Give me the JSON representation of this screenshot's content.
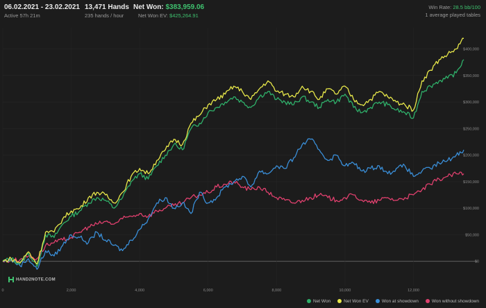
{
  "header": {
    "date_range": "06.02.2021 - 23.02.2021",
    "active": "Active 57h 21m",
    "hands": "13,471 Hands",
    "hands_rate": "235 hands / hour",
    "net_won_label": "Net Won:",
    "net_won_value": "$383,959.06",
    "ev_label": "Net Won  EV:",
    "ev_value": "$425,264.91",
    "win_rate_label": "Win Rate:",
    "win_rate_value": "28.5 bb/100",
    "avg_tables": "1 average played tables"
  },
  "logo_text": "HAND2NOTE.COM",
  "legend": [
    {
      "name": "Net Won",
      "color": "#2fb06a"
    },
    {
      "name": "Net Won  EV",
      "color": "#e8e84a"
    },
    {
      "name": "Won at showdown",
      "color": "#3a8fd9"
    },
    {
      "name": "Won without showdown",
      "color": "#e0406e"
    }
  ],
  "chart_data": {
    "type": "line",
    "xlim": [
      0,
      13471
    ],
    "ylim": [
      -20000,
      440000
    ],
    "x_ticks": [
      "0",
      "2,000",
      "4,000",
      "6,000",
      "8,000",
      "10,000",
      "12,000"
    ],
    "x_tick_values": [
      0,
      2000,
      4000,
      6000,
      8000,
      10000,
      12000
    ],
    "y_ticks": [
      "$0",
      "$50,000",
      "$100,000",
      "$150,000",
      "$200,000",
      "$250,000",
      "$300,000",
      "$350,000",
      "$400,000"
    ],
    "y_tick_values": [
      0,
      50000,
      100000,
      150000,
      200000,
      250000,
      300000,
      350000,
      400000
    ],
    "series": [
      {
        "name": "Net Won",
        "color": "#2fb06a",
        "x": [
          0,
          250,
          500,
          750,
          1000,
          1250,
          1500,
          1750,
          2000,
          2250,
          2500,
          2750,
          3000,
          3250,
          3500,
          3750,
          4000,
          4250,
          4500,
          4750,
          5000,
          5250,
          5500,
          5750,
          6000,
          6250,
          6500,
          6750,
          7000,
          7250,
          7500,
          7750,
          8000,
          8250,
          8500,
          8750,
          9000,
          9250,
          9500,
          9750,
          10000,
          10250,
          10500,
          10750,
          11000,
          11250,
          11500,
          11750,
          12000,
          12250,
          12500,
          12750,
          13000,
          13250,
          13471
        ],
        "values": [
          0,
          5000,
          -5000,
          15000,
          -10000,
          50000,
          45000,
          70000,
          85000,
          95000,
          110000,
          120000,
          115000,
          100000,
          120000,
          150000,
          165000,
          155000,
          180000,
          200000,
          220000,
          210000,
          250000,
          260000,
          280000,
          290000,
          300000,
          310000,
          300000,
          290000,
          310000,
          320000,
          305000,
          300000,
          295000,
          310000,
          300000,
          290000,
          305000,
          300000,
          315000,
          290000,
          280000,
          290000,
          300000,
          295000,
          285000,
          280000,
          270000,
          320000,
          330000,
          340000,
          345000,
          355000,
          380000
        ]
      },
      {
        "name": "Net Won  EV",
        "color": "#e8e84a",
        "x": [
          0,
          250,
          500,
          750,
          1000,
          1250,
          1500,
          1750,
          2000,
          2250,
          2500,
          2750,
          3000,
          3250,
          3500,
          3750,
          4000,
          4250,
          4500,
          4750,
          5000,
          5250,
          5500,
          5750,
          6000,
          6250,
          6500,
          6750,
          7000,
          7250,
          7500,
          7750,
          8000,
          8250,
          8500,
          8750,
          9000,
          9250,
          9500,
          9750,
          10000,
          10250,
          10500,
          10750,
          11000,
          11250,
          11500,
          11750,
          12000,
          12250,
          12500,
          12750,
          13000,
          13250,
          13471
        ],
        "values": [
          0,
          5000,
          -3000,
          18000,
          -5000,
          55000,
          55000,
          80000,
          95000,
          100000,
          120000,
          130000,
          125000,
          110000,
          130000,
          160000,
          175000,
          165000,
          190000,
          210000,
          230000,
          220000,
          260000,
          275000,
          295000,
          305000,
          315000,
          330000,
          320000,
          305000,
          325000,
          340000,
          320000,
          315000,
          310000,
          330000,
          320000,
          305000,
          325000,
          315000,
          330000,
          305000,
          295000,
          305000,
          320000,
          310000,
          300000,
          295000,
          285000,
          340000,
          360000,
          380000,
          390000,
          400000,
          420000
        ]
      },
      {
        "name": "Won at showdown",
        "color": "#3a8fd9",
        "x": [
          0,
          250,
          500,
          750,
          1000,
          1250,
          1500,
          1750,
          2000,
          2250,
          2500,
          2750,
          3000,
          3250,
          3500,
          3750,
          4000,
          4250,
          4500,
          4750,
          5000,
          5250,
          5500,
          5750,
          6000,
          6250,
          6500,
          6750,
          7000,
          7250,
          7500,
          7750,
          8000,
          8250,
          8500,
          8750,
          9000,
          9250,
          9500,
          9750,
          10000,
          10250,
          10500,
          10750,
          11000,
          11250,
          11500,
          11750,
          12000,
          12250,
          12500,
          12750,
          13000,
          13250,
          13471
        ],
        "values": [
          0,
          3000,
          -8000,
          5000,
          -15000,
          20000,
          10000,
          30000,
          50000,
          45000,
          35000,
          55000,
          40000,
          30000,
          20000,
          40000,
          60000,
          80000,
          110000,
          120000,
          100000,
          110000,
          90000,
          130000,
          110000,
          120000,
          140000,
          150000,
          160000,
          140000,
          170000,
          165000,
          180000,
          175000,
          195000,
          220000,
          230000,
          210000,
          190000,
          200000,
          180000,
          185000,
          170000,
          175000,
          180000,
          165000,
          175000,
          180000,
          160000,
          170000,
          175000,
          185000,
          190000,
          200000,
          210000
        ]
      },
      {
        "name": "Won without showdown",
        "color": "#e0406e",
        "x": [
          0,
          250,
          500,
          750,
          1000,
          1250,
          1500,
          1750,
          2000,
          2250,
          2500,
          2750,
          3000,
          3250,
          3500,
          3750,
          4000,
          4250,
          4500,
          4750,
          5000,
          5250,
          5500,
          5750,
          6000,
          6250,
          6500,
          6750,
          7000,
          7250,
          7500,
          7750,
          8000,
          8250,
          8500,
          8750,
          9000,
          9250,
          9500,
          9750,
          10000,
          10250,
          10500,
          10750,
          11000,
          11250,
          11500,
          11750,
          12000,
          12250,
          12500,
          12750,
          13000,
          13250,
          13471
        ],
        "values": [
          0,
          2000,
          3000,
          10000,
          5000,
          30000,
          35000,
          40000,
          45000,
          55000,
          65000,
          70000,
          75000,
          70000,
          80000,
          85000,
          90000,
          85000,
          95000,
          100000,
          105000,
          110000,
          120000,
          125000,
          130000,
          140000,
          145000,
          150000,
          140000,
          135000,
          140000,
          130000,
          120000,
          115000,
          110000,
          115000,
          120000,
          125000,
          120000,
          115000,
          120000,
          125000,
          115000,
          110000,
          115000,
          120000,
          115000,
          120000,
          125000,
          135000,
          145000,
          155000,
          160000,
          165000,
          165000
        ]
      }
    ]
  }
}
